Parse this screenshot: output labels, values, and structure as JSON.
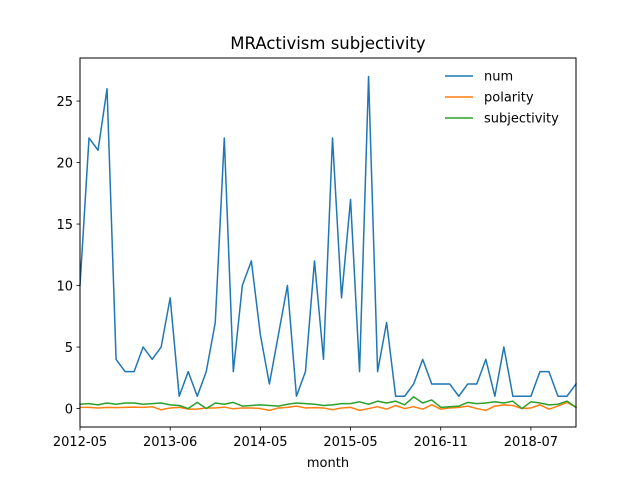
{
  "chart_data": {
    "type": "line",
    "title": "MRActivism subjectivity",
    "xlabel": "month",
    "ylabel": "",
    "x_tick_labels": [
      "2012-05",
      "2013-06",
      "2014-05",
      "2015-05",
      "2016-11",
      "2018-07"
    ],
    "x_tick_index": [
      0,
      10,
      20,
      30,
      40,
      50
    ],
    "xlim": [
      0,
      55
    ],
    "ylim": [
      -1.5,
      28.5
    ],
    "y_ticks": [
      0,
      5,
      10,
      15,
      20,
      25
    ],
    "grid": false,
    "legend_position": "upper right",
    "series": [
      {
        "name": "num",
        "color": "#1f77b4",
        "values": [
          10,
          22,
          21,
          26,
          4,
          3,
          3,
          5,
          4,
          5,
          9,
          1,
          3,
          1,
          3,
          7,
          22,
          3,
          10,
          12,
          6,
          2,
          6,
          10,
          1,
          3,
          12,
          4,
          22,
          9,
          17,
          3,
          27,
          3,
          7,
          1,
          1,
          2,
          4,
          2,
          2,
          2,
          1,
          2,
          2,
          4,
          1,
          5,
          1,
          1,
          1,
          3,
          3,
          1,
          1,
          2
        ]
      },
      {
        "name": "polarity",
        "color": "#ff7f0e",
        "values": [
          0.1,
          0.1,
          0.05,
          0.1,
          0.08,
          0.1,
          0.12,
          0.1,
          0.15,
          -0.1,
          0.05,
          0.1,
          -0.05,
          -0.05,
          0.05,
          0.05,
          0.12,
          -0.02,
          0.05,
          0.05,
          0.0,
          -0.15,
          0.05,
          0.1,
          0.2,
          0.05,
          0.08,
          0.05,
          -0.1,
          0.05,
          0.1,
          -0.15,
          0.0,
          0.15,
          -0.05,
          0.25,
          0.0,
          0.15,
          -0.05,
          0.3,
          -0.05,
          0.05,
          0.1,
          0.2,
          0.0,
          -0.15,
          0.2,
          0.3,
          0.25,
          0.0,
          0.05,
          0.3,
          -0.05,
          0.2,
          0.5,
          0.1
        ]
      },
      {
        "name": "subjectivity",
        "color": "#2ca02c",
        "values": [
          0.35,
          0.4,
          0.3,
          0.45,
          0.35,
          0.45,
          0.45,
          0.35,
          0.4,
          0.45,
          0.3,
          0.25,
          0.0,
          0.5,
          0.0,
          0.45,
          0.35,
          0.5,
          0.2,
          0.25,
          0.3,
          0.25,
          0.2,
          0.35,
          0.45,
          0.4,
          0.35,
          0.25,
          0.3,
          0.4,
          0.4,
          0.55,
          0.35,
          0.6,
          0.45,
          0.6,
          0.3,
          0.95,
          0.45,
          0.7,
          0.1,
          0.15,
          0.2,
          0.5,
          0.4,
          0.45,
          0.55,
          0.45,
          0.6,
          0.0,
          0.55,
          0.45,
          0.3,
          0.35,
          0.6,
          0.1
        ]
      }
    ]
  }
}
